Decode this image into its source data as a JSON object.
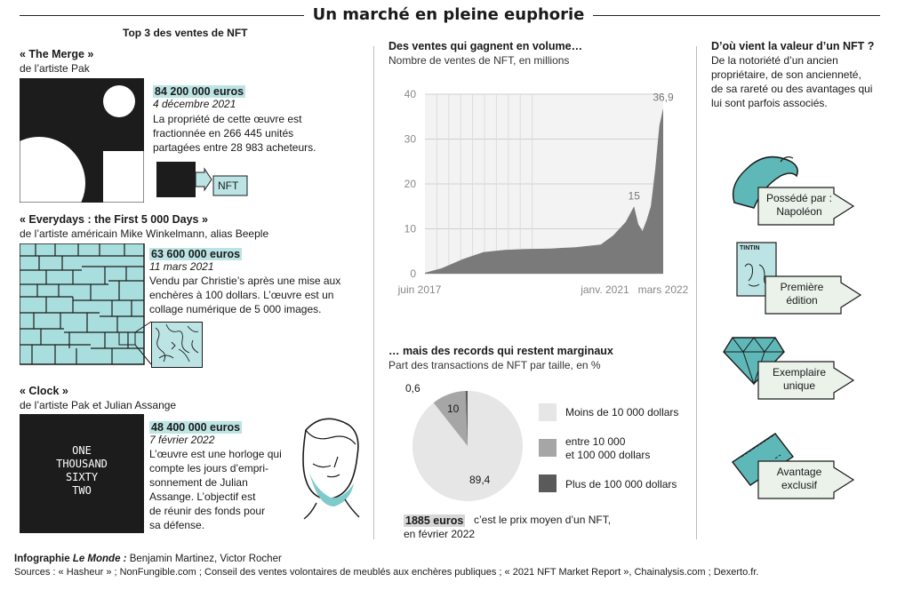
{
  "header": {
    "title": "Un marché en pleine euphorie"
  },
  "top3": {
    "title": "Top 3 des ventes de NFT",
    "items": [
      {
        "name": "« The Merge »",
        "artist": "de l’artiste Pak",
        "price": "84 200 000 euros",
        "date": "4 décembre 2021",
        "desc": [
          "La propriété de cette œuvre est",
          "fractionnée en 266 445 unités",
          "partagées entre 28 983 acheteurs."
        ],
        "tag": "NFT"
      },
      {
        "name": "« Everydays : the First 5 000 Days »",
        "artist": "de l’artiste américain Mike Winkelmann, alias Beeple",
        "price": "63 600 000 euros",
        "date": "11 mars 2021",
        "desc": [
          "Vendu par Christie’s après une mise aux",
          "enchères à 100 dollars. L’œuvre est un",
          "collage numérique de 5 000 images."
        ]
      },
      {
        "name": "« Clock »",
        "artist": "de l’artiste Pak et Julian Assange",
        "price": "48 400 000 euros",
        "date": "7 février 2022",
        "desc": [
          "L’œuvre est une horloge  qui",
          "compte les jours d’empri-",
          "sonnement de Julian",
          "Assange. L’objectif est",
          "de réunir des fonds pour",
          "sa défense."
        ],
        "clock_text": [
          "ONE",
          "THOUSAND",
          "SIXTY",
          "TWO"
        ]
      }
    ]
  },
  "line_section": {
    "title": "Des ventes qui gagnent en volume…",
    "subtitle": "Nombre de ventes de NFT, en millions"
  },
  "pie_section": {
    "title": "… mais des records qui restent marginaux",
    "subtitle": "Part des transactions de NFT par taille, en %"
  },
  "value_section": {
    "title": "D’où vient la valeur d’un NFT ?",
    "desc": [
      "De la notoriété d’un ancien",
      "propriétaire, de son ancienneté,",
      "de sa rareté ou des avantages qui",
      "lui sont parfois associés."
    ],
    "items": [
      {
        "label": [
          "Possédé par :",
          "Napoléon"
        ],
        "icon": "bicorne-hat-icon"
      },
      {
        "label": [
          "Première",
          "édition"
        ],
        "icon": "comic-book-icon",
        "book_title": "TINTIN"
      },
      {
        "label": [
          "Exemplaire",
          "unique"
        ],
        "icon": "diamond-icon"
      },
      {
        "label": [
          "Avantage",
          "exclusif"
        ],
        "icon": "ticket-icon"
      }
    ]
  },
  "avg_price": {
    "value": "1885 euros",
    "text1": "c’est le prix moyen d’un NFT,",
    "text2": "en février 2022"
  },
  "footer": {
    "credit_label": "Infographie ",
    "credit_paper": "Le Monde :",
    "credit_names": " Benjamin Martinez, Victor Rocher",
    "sources": "Sources : « Hasheur » ; NonFungible.com ; Conseil des ventes volontaires de meublés aux enchères publiques ; « 2021 NFT Market Report », Chainalysis.com ; Dexerto.fr."
  },
  "colors": {
    "accent": "#bde4e4",
    "teal": "#5fb8b8",
    "line_fill": "#7a7a7a",
    "pie_light": "#e6e6e6",
    "pie_mid": "#a6a6a6",
    "pie_dark": "#5a5a5a"
  },
  "chart_data": [
    {
      "type": "area",
      "title": "Des ventes qui gagnent en volume…",
      "subtitle": "Nombre de ventes de NFT, en millions",
      "x_tick_labels": [
        "juin 2017",
        "janv. 2021",
        "mars 2022"
      ],
      "y_ticks": [
        0,
        10,
        20,
        30,
        40
      ],
      "ylim": [
        0,
        40
      ],
      "grid": true,
      "series": [
        {
          "points": [
            {
              "x": "2017-06",
              "y": 0.2
            },
            {
              "x": "2017-10",
              "y": 1.2
            },
            {
              "x": "2018-03",
              "y": 3.2
            },
            {
              "x": "2018-08",
              "y": 4.8
            },
            {
              "x": "2019-01",
              "y": 5.3
            },
            {
              "x": "2019-06",
              "y": 5.5
            },
            {
              "x": "2019-12",
              "y": 5.6
            },
            {
              "x": "2020-06",
              "y": 5.9
            },
            {
              "x": "2020-12",
              "y": 6.5
            },
            {
              "x": "2021-03",
              "y": 8.5
            },
            {
              "x": "2021-06",
              "y": 11.5
            },
            {
              "x": "2021-08",
              "y": 15
            },
            {
              "x": "2021-09",
              "y": 11
            },
            {
              "x": "2021-10",
              "y": 9.5
            },
            {
              "x": "2021-11",
              "y": 12
            },
            {
              "x": "2021-12",
              "y": 15
            },
            {
              "x": "2022-01",
              "y": 23
            },
            {
              "x": "2022-02",
              "y": 33
            },
            {
              "x": "2022-03",
              "y": 36.9
            }
          ]
        }
      ],
      "annotations": [
        {
          "x": "2021-08",
          "label": "15"
        },
        {
          "x": "2022-03",
          "label": "36,9"
        }
      ]
    },
    {
      "type": "pie",
      "title": "… mais des records qui restent marginaux",
      "subtitle": "Part des transactions de NFT par taille, en %",
      "categories": [
        "Moins de 10 000 dollars",
        "entre 10 000 et 100 000 dollars",
        "Plus de 100 000 dollars"
      ],
      "values": [
        89.4,
        10,
        0.6
      ],
      "value_labels": [
        "89,4",
        "10",
        "0,6"
      ],
      "legend": "right"
    }
  ]
}
